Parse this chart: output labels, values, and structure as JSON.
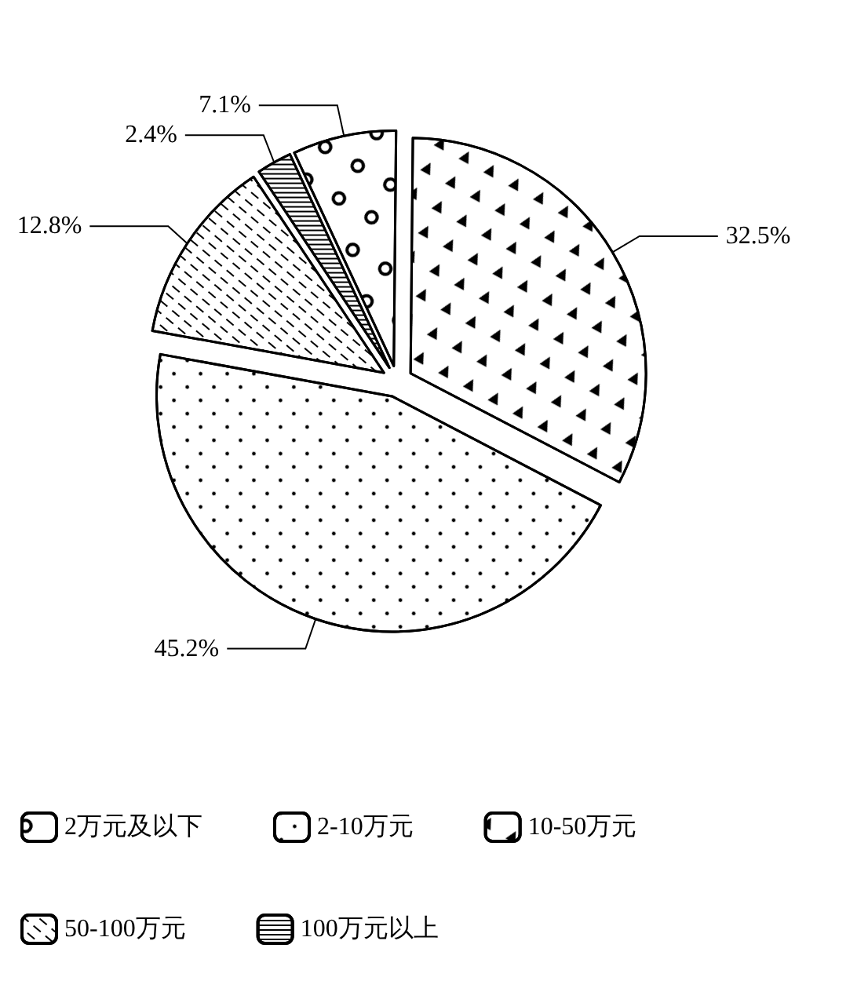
{
  "chart_data": {
    "type": "pie",
    "categories": [
      "2万元及以下",
      "2-10万元",
      "10-50万元",
      "50-100万元",
      "100万元以上"
    ],
    "values": [
      7.1,
      45.2,
      32.5,
      12.8,
      2.4
    ],
    "colors": [
      "#ffffff",
      "#ffffff",
      "#ffffff",
      "#ffffff",
      "#ffffff"
    ],
    "value_labels": [
      "7.1%",
      "45.2%",
      "32.5%",
      "12.8%",
      "2.4%"
    ],
    "legend": "bottom"
  }
}
